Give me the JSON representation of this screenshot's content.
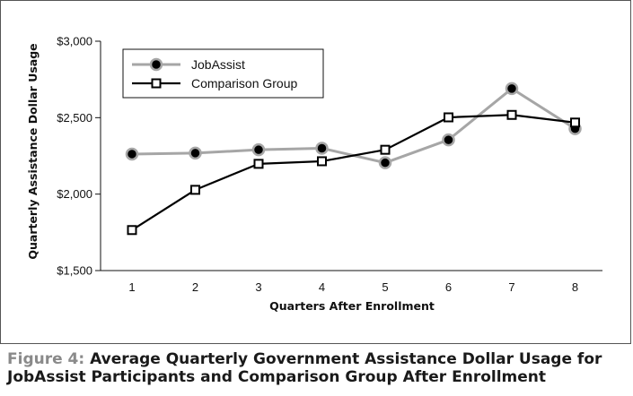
{
  "chart_data": {
    "type": "line",
    "title": "",
    "xlabel": "Quarters After Enrollment",
    "ylabel": "Quarterly Assistance Dollar Usage",
    "categories": [
      "1",
      "2",
      "3",
      "4",
      "5",
      "6",
      "7",
      "8"
    ],
    "ylim": [
      1500,
      3000
    ],
    "yticks": [
      1500,
      2000,
      2500,
      3000
    ],
    "ytick_labels": [
      "$1,500",
      "$2,000",
      "$2,500",
      "$3,000"
    ],
    "grid": false,
    "legend_position": "top-left",
    "series": [
      {
        "name": "JobAssist",
        "values": [
          2262,
          2268,
          2290,
          2300,
          2205,
          2355,
          2690,
          2428
        ],
        "color": "#a6a6a6",
        "marker": "filled-circle"
      },
      {
        "name": "Comparison Group",
        "values": [
          1765,
          2028,
          2198,
          2215,
          2290,
          2502,
          2518,
          2468
        ],
        "color": "#000000",
        "marker": "open-square"
      }
    ]
  },
  "caption": {
    "label": "Figure 4:",
    "text": "Average Quarterly Government Assistance Dollar Usage for JobAssist Participants and Comparison Group After Enrollment"
  }
}
